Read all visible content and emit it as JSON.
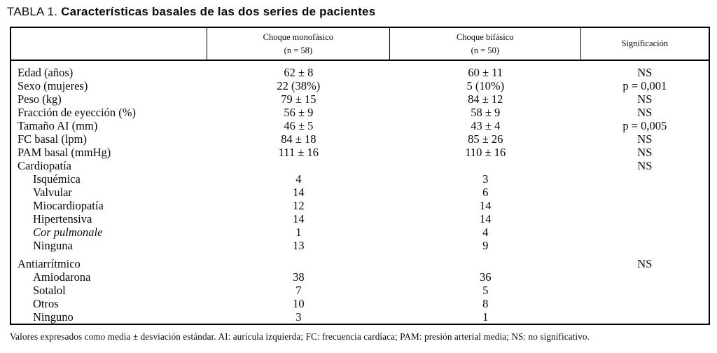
{
  "title": {
    "prefix": "TABLA 1.",
    "text": " Características basales de las dos series de pacientes"
  },
  "table": {
    "columns": [
      {
        "label": "",
        "sublabel": ""
      },
      {
        "label": "Choque monofásico",
        "sublabel": "(n = 58)"
      },
      {
        "label": "Choque bifásico",
        "sublabel": "(n = 50)"
      },
      {
        "label": "Significación",
        "sublabel": ""
      }
    ],
    "rows": [
      {
        "label": "Edad (años)",
        "mono": "62 ± 8",
        "bi": "60 ± 11",
        "sig": "NS"
      },
      {
        "label": "Sexo (mujeres)",
        "mono": "22 (38%)",
        "bi": "5 (10%)",
        "sig": "p = 0,001"
      },
      {
        "label": "Peso (kg)",
        "mono": "79 ± 15",
        "bi": "84 ± 12",
        "sig": "NS"
      },
      {
        "label": "Fracción de eyección (%)",
        "mono": "56 ± 9",
        "bi": "58 ± 9",
        "sig": "NS"
      },
      {
        "label": "Tamaño AI (mm)",
        "mono": "46 ± 5",
        "bi": "43 ± 4",
        "sig": "p = 0,005"
      },
      {
        "label": "FC basal (lpm)",
        "mono": "84 ± 18",
        "bi": "85 ± 26",
        "sig": "NS"
      },
      {
        "label": "PAM basal (mmHg)",
        "mono": "111 ± 16",
        "bi": "110 ± 16",
        "sig": "NS"
      },
      {
        "label": "Cardiopatía",
        "mono": "",
        "bi": "",
        "sig": "NS"
      },
      {
        "label": "Isquémica",
        "mono": "4",
        "bi": "3",
        "sig": ""
      },
      {
        "label": "Valvular",
        "mono": "14",
        "bi": "6",
        "sig": ""
      },
      {
        "label": "Miocardiopatía",
        "mono": "12",
        "bi": "14",
        "sig": ""
      },
      {
        "label": "Hipertensiva",
        "mono": "14",
        "bi": "14",
        "sig": ""
      },
      {
        "label": "Cor pulmonale",
        "mono": "1",
        "bi": "4",
        "sig": ""
      },
      {
        "label": "Ninguna",
        "mono": "13",
        "bi": "9",
        "sig": ""
      },
      {
        "label": "Antiarrítmico",
        "mono": "",
        "bi": "",
        "sig": "NS"
      },
      {
        "label": "Amiodarona",
        "mono": "38",
        "bi": "36",
        "sig": ""
      },
      {
        "label": "Sotalol",
        "mono": "7",
        "bi": "5",
        "sig": ""
      },
      {
        "label": "Otros",
        "mono": "10",
        "bi": "8",
        "sig": ""
      },
      {
        "label": "Ninguno",
        "mono": "3",
        "bi": "1",
        "sig": ""
      }
    ]
  },
  "footnote": "Valores expresados como media ± desviación estándar. AI: aurícula izquierda; FC: frecuencia cardíaca; PAM: presión arterial media; NS: no significativo."
}
